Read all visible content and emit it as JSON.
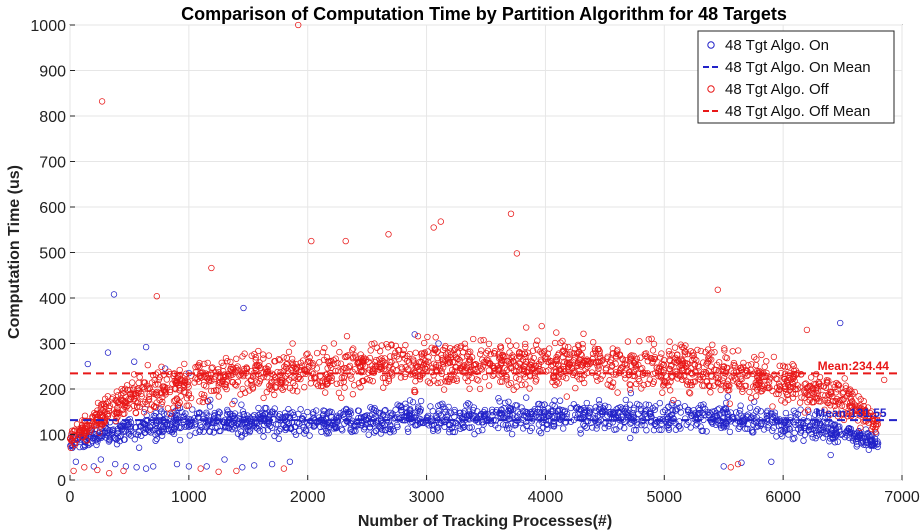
{
  "chart_data": {
    "type": "scatter",
    "title": "Comparison of Computation Time by Partition Algorithm for 48 Targets",
    "xlabel": "Number of Tracking Processes(#)",
    "ylabel": "Computation Time (us)",
    "xlim": [
      0,
      7000
    ],
    "ylim": [
      0,
      1000
    ],
    "xticks": [
      0,
      1000,
      2000,
      3000,
      4000,
      5000,
      6000,
      7000
    ],
    "yticks": [
      0,
      100,
      200,
      300,
      400,
      500,
      600,
      700,
      800,
      900,
      1000
    ],
    "grid": true,
    "legend_position": "top-right",
    "series": [
      {
        "name": "48 Tgt Algo. On",
        "kind": "points",
        "marker": "open-circle",
        "color": "#2222c8",
        "trend": [
          [
            0,
            85
          ],
          [
            300,
            100
          ],
          [
            600,
            120
          ],
          [
            1000,
            125
          ],
          [
            1500,
            128
          ],
          [
            2000,
            130
          ],
          [
            2500,
            132
          ],
          [
            3000,
            135
          ],
          [
            3500,
            138
          ],
          [
            4000,
            140
          ],
          [
            4500,
            140
          ],
          [
            5000,
            140
          ],
          [
            5500,
            135
          ],
          [
            6000,
            125
          ],
          [
            6500,
            105
          ],
          [
            6800,
            85
          ]
        ],
        "spread": 50,
        "n_points": 1600,
        "outliers": [
          [
            370,
            408
          ],
          [
            1460,
            378
          ],
          [
            2900,
            320
          ],
          [
            3100,
            300
          ],
          [
            6480,
            345
          ],
          [
            150,
            255
          ],
          [
            320,
            280
          ],
          [
            540,
            260
          ],
          [
            640,
            292
          ],
          [
            800,
            245
          ],
          [
            1000,
            235
          ]
        ],
        "low_points": [
          [
            50,
            40
          ],
          [
            200,
            30
          ],
          [
            260,
            45
          ],
          [
            380,
            35
          ],
          [
            470,
            30
          ],
          [
            560,
            28
          ],
          [
            640,
            25
          ],
          [
            700,
            30
          ],
          [
            900,
            35
          ],
          [
            1000,
            30
          ],
          [
            1150,
            30
          ],
          [
            1300,
            45
          ],
          [
            1450,
            28
          ],
          [
            1550,
            32
          ],
          [
            1700,
            35
          ],
          [
            1850,
            40
          ],
          [
            5500,
            30
          ],
          [
            5650,
            38
          ],
          [
            5900,
            40
          ],
          [
            6400,
            55
          ]
        ]
      },
      {
        "name": "48 Tgt Algo. On Mean",
        "kind": "line",
        "style": "dashed",
        "color": "#2222c8",
        "value": 131.55
      },
      {
        "name": "48 Tgt Algo. Off",
        "kind": "points",
        "marker": "open-circle",
        "color": "#e81818",
        "trend": [
          [
            0,
            90
          ],
          [
            300,
            150
          ],
          [
            600,
            190
          ],
          [
            800,
            205
          ],
          [
            1000,
            215
          ],
          [
            1500,
            230
          ],
          [
            2000,
            240
          ],
          [
            2500,
            250
          ],
          [
            3000,
            252
          ],
          [
            3500,
            255
          ],
          [
            4000,
            258
          ],
          [
            4500,
            255
          ],
          [
            5000,
            250
          ],
          [
            5500,
            238
          ],
          [
            6000,
            215
          ],
          [
            6500,
            180
          ],
          [
            6800,
            125
          ]
        ],
        "spread": 75,
        "n_points": 1900,
        "outliers": [
          [
            270,
            832
          ],
          [
            1920,
            1000
          ],
          [
            3060,
            555
          ],
          [
            3120,
            568
          ],
          [
            3710,
            585
          ],
          [
            3760,
            498
          ],
          [
            2030,
            525
          ],
          [
            2320,
            525
          ],
          [
            2680,
            540
          ],
          [
            1190,
            466
          ],
          [
            730,
            404
          ],
          [
            5450,
            418
          ],
          [
            6200,
            330
          ],
          [
            6850,
            220
          ]
        ],
        "low_points": [
          [
            30,
            20
          ],
          [
            120,
            28
          ],
          [
            230,
            22
          ],
          [
            330,
            15
          ],
          [
            450,
            20
          ],
          [
            1100,
            25
          ],
          [
            1250,
            18
          ],
          [
            1400,
            20
          ],
          [
            1800,
            25
          ],
          [
            5560,
            28
          ],
          [
            5620,
            35
          ]
        ]
      },
      {
        "name": "48 Tgt Algo. Off Mean",
        "kind": "line",
        "style": "dashed",
        "color": "#e81818",
        "value": 234.44
      }
    ],
    "annotations": [
      {
        "series": "48 Tgt Algo. Off Mean",
        "text": "Mean:234.44",
        "x": 6290,
        "y": 242
      },
      {
        "series": "48 Tgt Algo. On Mean",
        "text": "Mean:131.55",
        "x": 6270,
        "y": 139
      }
    ]
  }
}
